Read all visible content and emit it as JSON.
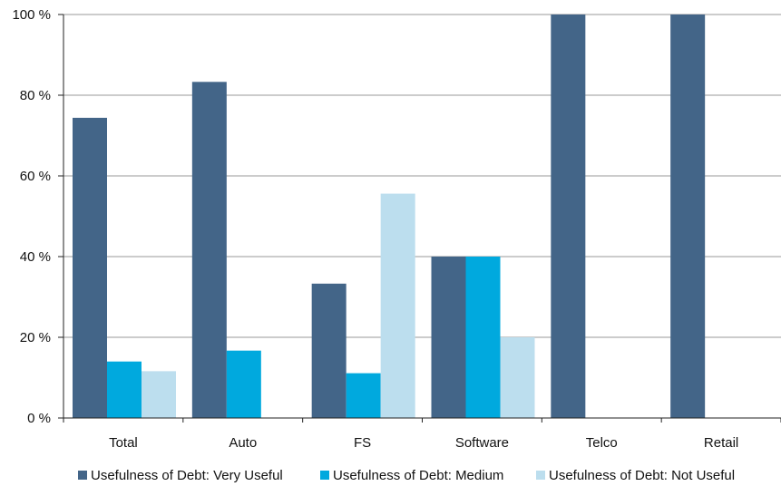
{
  "chart_data": {
    "type": "bar",
    "categories": [
      "Total",
      "Auto",
      "FS",
      "Software",
      "Telco",
      "Retail"
    ],
    "series": [
      {
        "name": "Usefulness of Debt: Very Useful",
        "color": "#436588",
        "values": [
          74.4,
          83.3,
          33.3,
          40,
          100,
          100
        ]
      },
      {
        "name": "Usefulness of Debt: Medium",
        "color": "#00a9de",
        "values": [
          14,
          16.7,
          11.1,
          40,
          0,
          0
        ]
      },
      {
        "name": "Usefulness of Debt: Not Useful",
        "color": "#bcdeee",
        "values": [
          11.6,
          0,
          55.6,
          20,
          0,
          0
        ]
      }
    ],
    "ylim": [
      0,
      100
    ],
    "yticks": [
      "0 %",
      "20 %",
      "40 %",
      "60 %",
      "80 %",
      "100 %"
    ],
    "grid": true,
    "legend_position": "bottom"
  }
}
